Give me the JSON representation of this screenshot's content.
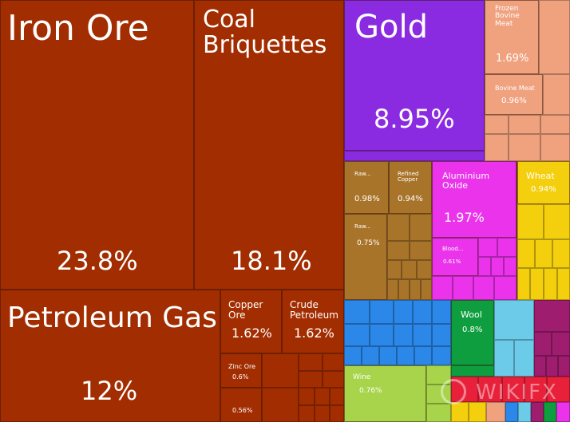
{
  "chart_data": {
    "type": "treemap",
    "colors": {
      "mineral": "#a22d01",
      "gold": "#8a2be2",
      "animal": "#f0a27f",
      "metal": "#a8742a",
      "chemical": "#ea33ea",
      "vegetable": "#f3cf0d",
      "machinery": "#2b87e8",
      "textile": "#0f9e3f",
      "transport": "#6ccbe9",
      "foodstuff": "#a7d44b",
      "misc": "#9e1d6e",
      "other": "#e8203a"
    },
    "tiles": [
      {
        "name": "Iron Ore",
        "value": "23.8%",
        "color": "mineral"
      },
      {
        "name": "Coal Briquettes",
        "value": "18.1%",
        "color": "mineral"
      },
      {
        "name": "Petroleum Gas",
        "value": "12%",
        "color": "mineral"
      },
      {
        "name": "Copper Ore",
        "value": "1.62%",
        "color": "mineral"
      },
      {
        "name": "Crude Petroleum",
        "value": "1.62%",
        "color": "mineral"
      },
      {
        "name": "Zinc Ore",
        "value": "0.6%",
        "color": "mineral"
      },
      {
        "name": "",
        "value": "0.56%",
        "color": "mineral"
      },
      {
        "name": "Gold",
        "value": "8.95%",
        "color": "gold"
      },
      {
        "name": "Frozen Bovine Meat",
        "value": "1.69%",
        "color": "animal"
      },
      {
        "name": "Bovine Meat",
        "value": "0.96%",
        "color": "animal"
      },
      {
        "name": "Raw...",
        "value": "0.98%",
        "color": "metal"
      },
      {
        "name": "Refined Copper",
        "value": "0.94%",
        "color": "metal"
      },
      {
        "name": "Raw...",
        "value": "0.75%",
        "color": "metal"
      },
      {
        "name": "Aluminium Oxide",
        "value": "1.97%",
        "color": "chemical"
      },
      {
        "name": "Blood...",
        "value": "0.61%",
        "color": "chemical"
      },
      {
        "name": "Wheat",
        "value": "0.94%",
        "color": "vegetable"
      },
      {
        "name": "Wool",
        "value": "0.8%",
        "color": "textile"
      },
      {
        "name": "Wine",
        "value": "0.76%",
        "color": "foodstuff"
      }
    ]
  },
  "watermark": {
    "text": "WIKIFX"
  }
}
